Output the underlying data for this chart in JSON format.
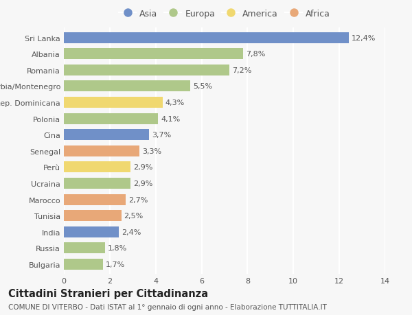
{
  "countries": [
    "Bulgaria",
    "Russia",
    "India",
    "Tunisia",
    "Marocco",
    "Ucraina",
    "Perù",
    "Senegal",
    "Cina",
    "Polonia",
    "Rep. Dominicana",
    "Serbia/Montenegro",
    "Romania",
    "Albania",
    "Sri Lanka"
  ],
  "values": [
    1.7,
    1.8,
    2.4,
    2.5,
    2.7,
    2.9,
    2.9,
    3.3,
    3.7,
    4.1,
    4.3,
    5.5,
    7.2,
    7.8,
    12.4
  ],
  "labels": [
    "1,7%",
    "1,8%",
    "2,4%",
    "2,5%",
    "2,7%",
    "2,9%",
    "2,9%",
    "3,3%",
    "3,7%",
    "4,1%",
    "4,3%",
    "5,5%",
    "7,2%",
    "7,8%",
    "12,4%"
  ],
  "continents": [
    "Europa",
    "Europa",
    "Asia",
    "Africa",
    "Africa",
    "Europa",
    "America",
    "Africa",
    "Asia",
    "Europa",
    "America",
    "Europa",
    "Europa",
    "Europa",
    "Asia"
  ],
  "continent_colors": {
    "Asia": "#7090c8",
    "Europa": "#afc88a",
    "America": "#f0d870",
    "Africa": "#e8a878"
  },
  "legend_order": [
    "Asia",
    "Europa",
    "America",
    "Africa"
  ],
  "title": "Cittadini Stranieri per Cittadinanza",
  "subtitle": "COMUNE DI VITERBO - Dati ISTAT al 1° gennaio di ogni anno - Elaborazione TUTTITALIA.IT",
  "xlim": [
    0,
    14
  ],
  "xticks": [
    0,
    2,
    4,
    6,
    8,
    10,
    12,
    14
  ],
  "background_color": "#f7f7f7",
  "bar_height": 0.68,
  "grid_color": "#ffffff",
  "label_fontsize": 8,
  "tick_fontsize": 8,
  "title_fontsize": 10.5,
  "subtitle_fontsize": 7.5
}
